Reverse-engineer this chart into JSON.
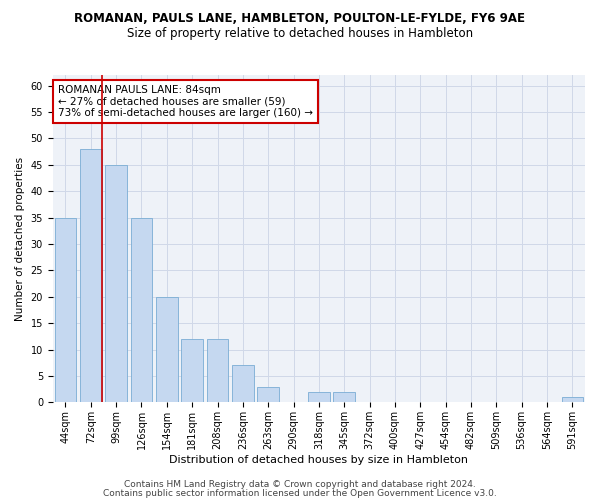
{
  "title": "ROMANAN, PAULS LANE, HAMBLETON, POULTON-LE-FYLDE, FY6 9AE",
  "subtitle": "Size of property relative to detached houses in Hambleton",
  "xlabel": "Distribution of detached houses by size in Hambleton",
  "ylabel": "Number of detached properties",
  "categories": [
    "44sqm",
    "72sqm",
    "99sqm",
    "126sqm",
    "154sqm",
    "181sqm",
    "208sqm",
    "236sqm",
    "263sqm",
    "290sqm",
    "318sqm",
    "345sqm",
    "372sqm",
    "400sqm",
    "427sqm",
    "454sqm",
    "482sqm",
    "509sqm",
    "536sqm",
    "564sqm",
    "591sqm"
  ],
  "values": [
    35,
    48,
    45,
    35,
    20,
    12,
    12,
    7,
    3,
    0,
    2,
    2,
    0,
    0,
    0,
    0,
    0,
    0,
    0,
    0,
    1
  ],
  "bar_color": "#c5d8f0",
  "bar_edge_color": "#7aadd4",
  "marker_line_index": 1,
  "marker_line_color": "#cc0000",
  "annotation_text": "ROMANAN PAULS LANE: 84sqm\n← 27% of detached houses are smaller (59)\n73% of semi-detached houses are larger (160) →",
  "annotation_box_color": "#ffffff",
  "annotation_box_edge": "#cc0000",
  "ylim": [
    0,
    62
  ],
  "yticks": [
    0,
    5,
    10,
    15,
    20,
    25,
    30,
    35,
    40,
    45,
    50,
    55,
    60
  ],
  "grid_color": "#d0d8e8",
  "footer1": "Contains HM Land Registry data © Crown copyright and database right 2024.",
  "footer2": "Contains public sector information licensed under the Open Government Licence v3.0.",
  "title_fontsize": 8.5,
  "subtitle_fontsize": 8.5,
  "xlabel_fontsize": 8,
  "ylabel_fontsize": 7.5,
  "tick_fontsize": 7,
  "annotation_fontsize": 7.5,
  "footer_fontsize": 6.5
}
